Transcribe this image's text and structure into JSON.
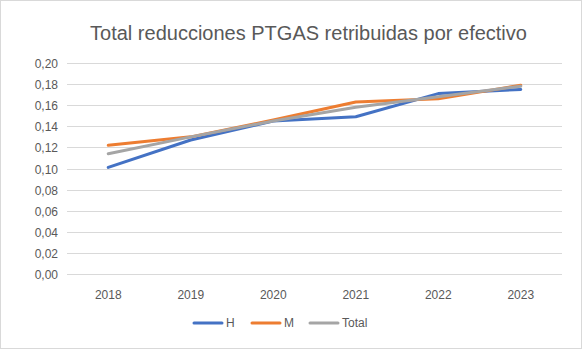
{
  "chart_data": {
    "type": "line",
    "title": "Total reducciones PTGAS retribuidas por efectivo",
    "categories": [
      "2018",
      "2019",
      "2020",
      "2021",
      "2022",
      "2023"
    ],
    "series": [
      {
        "name": "H",
        "color": "#4472c4",
        "values": [
          0.101,
          0.127,
          0.145,
          0.149,
          0.171,
          0.175
        ]
      },
      {
        "name": "M",
        "color": "#ed7d31",
        "values": [
          0.122,
          0.13,
          0.146,
          0.163,
          0.166,
          0.179
        ]
      },
      {
        "name": "Total",
        "color": "#a5a5a5",
        "values": [
          0.114,
          0.13,
          0.145,
          0.158,
          0.168,
          0.178
        ]
      }
    ],
    "ylim": [
      0,
      0.2
    ],
    "yticks": [
      {
        "value": 0,
        "label": "0,00"
      },
      {
        "value": 0.02,
        "label": "0,02"
      },
      {
        "value": 0.04,
        "label": "0,04"
      },
      {
        "value": 0.06,
        "label": "0,06"
      },
      {
        "value": 0.08,
        "label": "0,08"
      },
      {
        "value": 0.1,
        "label": "0,10"
      },
      {
        "value": 0.12,
        "label": "0,12"
      },
      {
        "value": 0.14,
        "label": "0,14"
      },
      {
        "value": 0.16,
        "label": "0,16"
      },
      {
        "value": 0.18,
        "label": "0,18"
      },
      {
        "value": 0.2,
        "label": "0,20"
      }
    ],
    "grid": true,
    "legend": "bottom"
  }
}
